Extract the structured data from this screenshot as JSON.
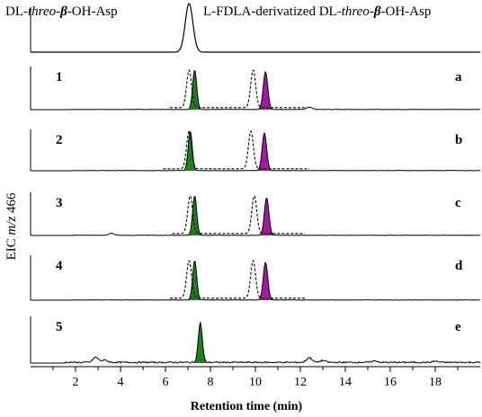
{
  "chart_data": {
    "type": "line",
    "title_left_prefix": "DL-",
    "title_left_ital": "threo",
    "title_left_dash": "-",
    "title_left_beta": "β",
    "title_left_suffix": "-OH-Asp",
    "title_right_prefix": "L-FDLA-derivatized DL-",
    "title_right_ital": "threo",
    "title_right_dash": "-",
    "title_right_beta": "β",
    "title_right_suffix": "-OH-Asp",
    "ylabel_prefix": "EIC ",
    "ylabel_ital": "m/z",
    "ylabel_suffix": " 466",
    "xlabel": "Retention time (min)",
    "xlim": [
      0,
      20
    ],
    "x_ticks": [
      2,
      4,
      6,
      8,
      10,
      12,
      14,
      16,
      18
    ],
    "x_tick_labels": [
      "2",
      "4",
      "6",
      "8",
      "10",
      "12",
      "14",
      "16",
      "18"
    ],
    "grid": false,
    "colors": {
      "green": "#1f7f1f",
      "magenta": "#a31aa3",
      "trace": "#000000"
    },
    "top_trace": {
      "peak_x": 7.05,
      "peak_height": 1.0,
      "width": 0.17
    },
    "panels": [
      {
        "num": "1",
        "letter": "a",
        "green_peak": 7.3,
        "magenta_peak": 10.45,
        "dashed_peaks": [
          7.05,
          9.9
        ],
        "dashed_range": [
          6.2,
          12.2
        ],
        "noise": [
          [
            12.4,
            0.06
          ]
        ]
      },
      {
        "num": "2",
        "letter": "b",
        "green_peak": 7.1,
        "magenta_peak": 10.4,
        "dashed_peaks": [
          7.05,
          9.8
        ],
        "dashed_range": [
          5.9,
          12.4
        ],
        "noise": []
      },
      {
        "num": "3",
        "letter": "c",
        "green_peak": 7.3,
        "magenta_peak": 10.5,
        "dashed_peaks": [
          7.1,
          9.95
        ],
        "dashed_range": [
          6.3,
          12.2
        ],
        "noise": [
          [
            3.6,
            0.05
          ]
        ]
      },
      {
        "num": "4",
        "letter": "d",
        "green_peak": 7.3,
        "magenta_peak": 10.45,
        "dashed_peaks": [
          7.05,
          9.9
        ],
        "dashed_range": [
          6.2,
          12.2
        ],
        "noise": []
      },
      {
        "num": "5",
        "letter": "e",
        "green_peak": 7.55,
        "magenta_peak": null,
        "dashed_peaks": [],
        "dashed_range": null,
        "noise": [
          [
            2.9,
            0.13
          ],
          [
            3.3,
            0.06
          ],
          [
            12.4,
            0.12
          ],
          [
            13.0,
            0.05
          ],
          [
            15.3,
            0.04
          ],
          [
            18.0,
            0.03
          ]
        ]
      }
    ]
  }
}
